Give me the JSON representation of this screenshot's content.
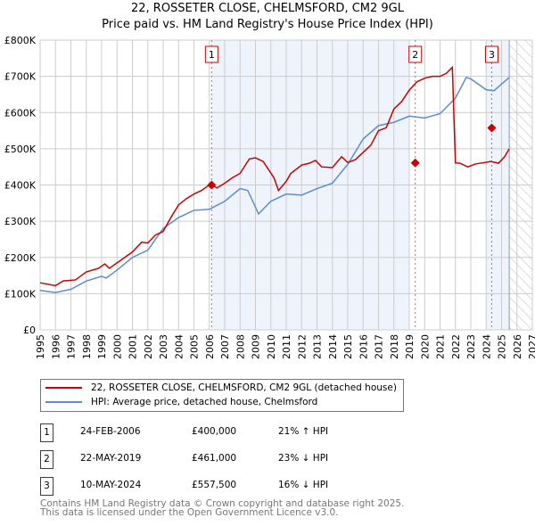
{
  "title_line1": "22, ROSSETER CLOSE, CHELMSFORD, CM2 9GL",
  "title_line2": "Price paid vs. HM Land Registry's House Price Index (HPI)",
  "colors": {
    "property": "#cc0000",
    "hpi": "#5b8dd3",
    "shade": "#eef3fc"
  },
  "chart_data": {
    "type": "line",
    "xlim": [
      1995,
      2027
    ],
    "ylim": [
      0,
      800000
    ],
    "x_ticks": [
      "1995",
      "1996",
      "1997",
      "1998",
      "1999",
      "2000",
      "2001",
      "2002",
      "2003",
      "2004",
      "2005",
      "2006",
      "2007",
      "2008",
      "2009",
      "2010",
      "2011",
      "2012",
      "2013",
      "2014",
      "2015",
      "2016",
      "2017",
      "2018",
      "2019",
      "2020",
      "2021",
      "2022",
      "2023",
      "2024",
      "2025",
      "2026",
      "2027"
    ],
    "y_ticks": [
      {
        "v": 0,
        "label": "£0"
      },
      {
        "v": 100000,
        "label": "£100K"
      },
      {
        "v": 200000,
        "label": "£200K"
      },
      {
        "v": 300000,
        "label": "£300K"
      },
      {
        "v": 400000,
        "label": "£400K"
      },
      {
        "v": 500000,
        "label": "£500K"
      },
      {
        "v": 600000,
        "label": "£600K"
      },
      {
        "v": 700000,
        "label": "£700K"
      },
      {
        "v": 800000,
        "label": "£800K"
      }
    ],
    "shaded_ranges": [
      [
        2006.15,
        2019.0
      ],
      [
        2024.0,
        2025.5
      ]
    ],
    "forecast_start": 2025.5,
    "series": [
      {
        "name": "22, ROSSETER CLOSE, CHELMSFORD, CM2 9GL (detached house)",
        "points": [
          [
            1995,
            130000
          ],
          [
            1996,
            122000
          ],
          [
            1996.5,
            135000
          ],
          [
            1997.3,
            138000
          ],
          [
            1998,
            160000
          ],
          [
            1998.8,
            170000
          ],
          [
            1999.2,
            182000
          ],
          [
            1999.5,
            170000
          ],
          [
            2000,
            185000
          ],
          [
            2000.5,
            200000
          ],
          [
            2001,
            215000
          ],
          [
            2001.6,
            242000
          ],
          [
            2002,
            240000
          ],
          [
            2002.5,
            262000
          ],
          [
            2003,
            272000
          ],
          [
            2003.5,
            310000
          ],
          [
            2004,
            345000
          ],
          [
            2004.5,
            362000
          ],
          [
            2005,
            375000
          ],
          [
            2005.5,
            385000
          ],
          [
            2006,
            400000
          ],
          [
            2006.15,
            400000
          ],
          [
            2006.5,
            392000
          ],
          [
            2007,
            405000
          ],
          [
            2007.5,
            420000
          ],
          [
            2008,
            432000
          ],
          [
            2008.6,
            472000
          ],
          [
            2009,
            475000
          ],
          [
            2009.5,
            465000
          ],
          [
            2010.2,
            420000
          ],
          [
            2010.5,
            385000
          ],
          [
            2011,
            410000
          ],
          [
            2011.3,
            432000
          ],
          [
            2012,
            455000
          ],
          [
            2012.5,
            460000
          ],
          [
            2012.9,
            468000
          ],
          [
            2013.3,
            450000
          ],
          [
            2014,
            448000
          ],
          [
            2014.6,
            478000
          ],
          [
            2015,
            462000
          ],
          [
            2015.5,
            470000
          ],
          [
            2016,
            490000
          ],
          [
            2016.5,
            510000
          ],
          [
            2017,
            550000
          ],
          [
            2017.5,
            558000
          ],
          [
            2018,
            610000
          ],
          [
            2018.5,
            630000
          ],
          [
            2019,
            662000
          ],
          [
            2019.5,
            685000
          ],
          [
            2020,
            695000
          ],
          [
            2020.5,
            700000
          ],
          [
            2021,
            700000
          ],
          [
            2021.4,
            708000
          ],
          [
            2021.8,
            725000
          ],
          [
            2022,
            461000
          ],
          [
            2022.3,
            460000
          ],
          [
            2022.8,
            450000
          ],
          [
            2023.3,
            458000
          ],
          [
            2023.9,
            462000
          ],
          [
            2024.3,
            465000
          ],
          [
            2024.8,
            460000
          ],
          [
            2025.2,
            478000
          ],
          [
            2025.5,
            500000
          ]
        ],
        "color_key": "property"
      },
      {
        "name": "HPI: Average price, detached house, Chelmsford",
        "points": [
          [
            1995,
            109000
          ],
          [
            1996,
            103000
          ],
          [
            1997,
            112000
          ],
          [
            1998,
            135000
          ],
          [
            1999,
            148000
          ],
          [
            1999.3,
            143000
          ],
          [
            2000,
            165000
          ],
          [
            2001,
            200000
          ],
          [
            2002,
            220000
          ],
          [
            2003,
            280000
          ],
          [
            2004,
            310000
          ],
          [
            2005,
            330000
          ],
          [
            2006,
            333000
          ],
          [
            2007,
            355000
          ],
          [
            2008,
            390000
          ],
          [
            2008.5,
            385000
          ],
          [
            2009.2,
            320000
          ],
          [
            2010,
            355000
          ],
          [
            2011,
            375000
          ],
          [
            2012,
            372000
          ],
          [
            2013,
            390000
          ],
          [
            2014,
            405000
          ],
          [
            2015,
            457000
          ],
          [
            2016,
            527000
          ],
          [
            2017,
            564000
          ],
          [
            2018,
            573000
          ],
          [
            2019,
            590000
          ],
          [
            2020,
            585000
          ],
          [
            2021,
            597000
          ],
          [
            2022,
            640000
          ],
          [
            2022.7,
            697000
          ],
          [
            2023,
            693000
          ],
          [
            2024,
            663000
          ],
          [
            2024.5,
            660000
          ],
          [
            2025.5,
            697000
          ]
        ],
        "color_key": "hpi"
      }
    ],
    "sales": [
      {
        "id": "1",
        "x": 2006.15,
        "value": 400000,
        "date": "24-FEB-2006",
        "price": "£400,000",
        "hpi": "21% ↑ HPI"
      },
      {
        "id": "2",
        "x": 2019.39,
        "value": 461000,
        "date": "22-MAY-2019",
        "price": "£461,000",
        "hpi": "23% ↓ HPI"
      },
      {
        "id": "3",
        "x": 2024.36,
        "value": 557500,
        "date": "10-MAY-2024",
        "price": "£557,500",
        "hpi": "16% ↓ HPI"
      }
    ]
  },
  "legend": {
    "property": "22, ROSSETER CLOSE, CHELMSFORD, CM2 9GL (detached house)",
    "hpi": "HPI: Average price, detached house, Chelmsford"
  },
  "footer_line1": "Contains HM Land Registry data © Crown copyright and database right 2025.",
  "footer_line2": "This data is licensed under the Open Government Licence v3.0."
}
